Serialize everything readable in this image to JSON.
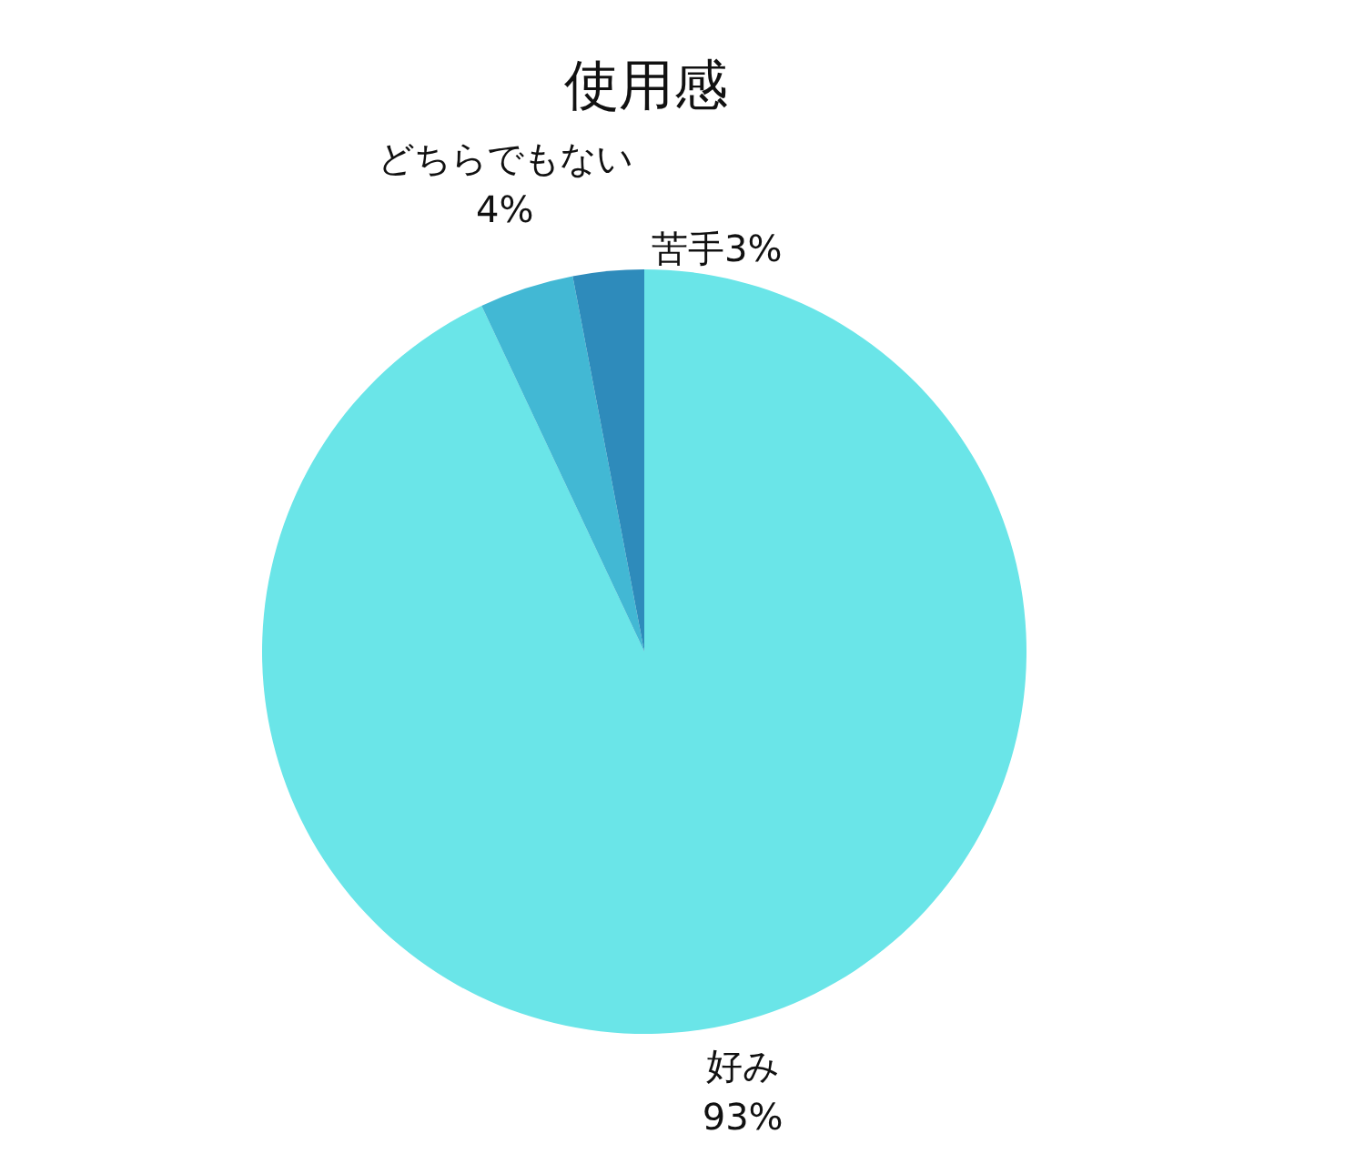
{
  "chart_data": {
    "type": "pie",
    "title": "使用感",
    "categories": [
      "好み",
      "どちらでもない",
      "苦手"
    ],
    "values": [
      93,
      4,
      3
    ],
    "value_labels": [
      "93%",
      "4%",
      "3%"
    ],
    "colors": [
      "#6ae5e8",
      "#42b8d4",
      "#2e8bbb"
    ]
  }
}
